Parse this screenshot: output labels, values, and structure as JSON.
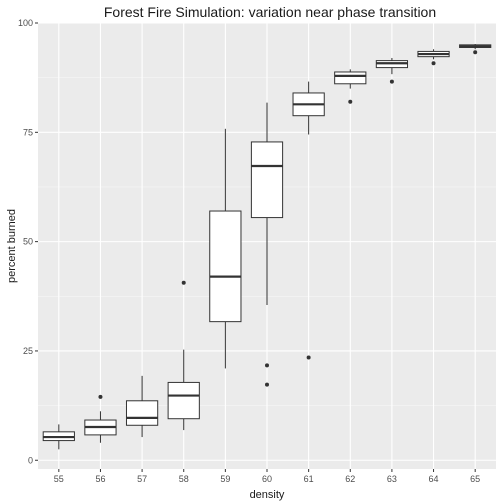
{
  "chart_data": {
    "type": "boxplot",
    "title": "Forest Fire Simulation: variation near phase transition",
    "xlabel": "density",
    "ylabel": "percent burned",
    "ylim": [
      -2,
      100
    ],
    "y_ticks": [
      0,
      25,
      50,
      75,
      100
    ],
    "grid": true,
    "categories": [
      "55",
      "56",
      "57",
      "58",
      "59",
      "60",
      "61",
      "62",
      "63",
      "64",
      "65"
    ],
    "boxes": [
      {
        "category": "55",
        "min": 2.5,
        "q1": 4.5,
        "median": 5.3,
        "q3": 6.5,
        "max": 8.2,
        "outliers": []
      },
      {
        "category": "56",
        "min": 4.0,
        "q1": 5.8,
        "median": 7.6,
        "q3": 9.2,
        "max": 11.2,
        "outliers": [
          14.5
        ]
      },
      {
        "category": "57",
        "min": 5.3,
        "q1": 8.0,
        "median": 9.7,
        "q3": 13.6,
        "max": 19.3,
        "outliers": []
      },
      {
        "category": "58",
        "min": 6.9,
        "q1": 9.5,
        "median": 14.8,
        "q3": 17.8,
        "max": 25.3,
        "outliers": [
          40.6
        ]
      },
      {
        "category": "59",
        "min": 21.0,
        "q1": 31.7,
        "median": 42.0,
        "q3": 57.0,
        "max": 75.8,
        "outliers": []
      },
      {
        "category": "60",
        "min": 35.5,
        "q1": 55.5,
        "median": 67.3,
        "q3": 72.8,
        "max": 81.8,
        "outliers": [
          21.7,
          17.3
        ]
      },
      {
        "category": "61",
        "min": 74.5,
        "q1": 78.8,
        "median": 81.4,
        "q3": 84.0,
        "max": 86.6,
        "outliers": [
          23.5
        ]
      },
      {
        "category": "62",
        "min": 85.0,
        "q1": 86.1,
        "median": 87.9,
        "q3": 88.8,
        "max": 89.4,
        "outliers": [
          82.0
        ]
      },
      {
        "category": "63",
        "min": 88.3,
        "q1": 89.8,
        "median": 90.8,
        "q3": 91.4,
        "max": 92.0,
        "outliers": [
          86.6
        ]
      },
      {
        "category": "64",
        "min": 91.7,
        "q1": 92.3,
        "median": 92.9,
        "q3": 93.5,
        "max": 94.0,
        "outliers": [
          90.8
        ]
      },
      {
        "category": "65",
        "min": 94.0,
        "q1": 94.4,
        "median": 94.7,
        "q3": 95.0,
        "max": 95.2,
        "outliers": [
          93.3
        ]
      }
    ]
  },
  "colors": {
    "panel_bg": "#ebebeb",
    "grid_major": "#ffffff",
    "box_fill": "#ffffff",
    "box_stroke": "#333333",
    "text": "#1a1a1a",
    "tick_text": "#4d4d4d"
  }
}
